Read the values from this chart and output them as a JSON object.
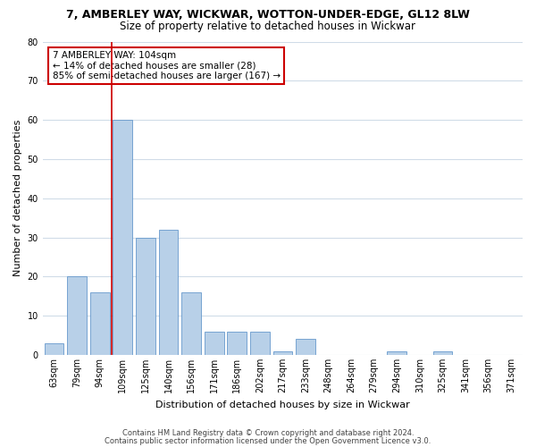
{
  "title1": "7, AMBERLEY WAY, WICKWAR, WOTTON-UNDER-EDGE, GL12 8LW",
  "title2": "Size of property relative to detached houses in Wickwar",
  "xlabel": "Distribution of detached houses by size in Wickwar",
  "ylabel": "Number of detached properties",
  "bar_labels": [
    "63sqm",
    "79sqm",
    "94sqm",
    "109sqm",
    "125sqm",
    "140sqm",
    "156sqm",
    "171sqm",
    "186sqm",
    "202sqm",
    "217sqm",
    "233sqm",
    "248sqm",
    "264sqm",
    "279sqm",
    "294sqm",
    "310sqm",
    "325sqm",
    "341sqm",
    "356sqm",
    "371sqm"
  ],
  "bar_values": [
    3,
    20,
    16,
    60,
    30,
    32,
    16,
    6,
    6,
    6,
    1,
    4,
    0,
    0,
    0,
    1,
    0,
    1,
    0,
    0,
    0
  ],
  "bar_color": "#b8d0e8",
  "bar_edge_color": "#6699cc",
  "grid_color": "#d0dce8",
  "annotation_line1": "7 AMBERLEY WAY: 104sqm",
  "annotation_line2": "← 14% of detached houses are smaller (28)",
  "annotation_line3": "85% of semi-detached houses are larger (167) →",
  "annotation_box_color": "#ffffff",
  "annotation_box_edge_color": "#cc0000",
  "vline_x": 2.5,
  "vline_color": "#cc0000",
  "ylim": [
    0,
    80
  ],
  "yticks": [
    0,
    10,
    20,
    30,
    40,
    50,
    60,
    70,
    80
  ],
  "footer1": "Contains HM Land Registry data © Crown copyright and database right 2024.",
  "footer2": "Contains public sector information licensed under the Open Government Licence v3.0.",
  "background_color": "#ffffff",
  "title1_fontsize": 9,
  "title2_fontsize": 8.5,
  "xlabel_fontsize": 8,
  "ylabel_fontsize": 8,
  "tick_fontsize": 7,
  "footer_fontsize": 6,
  "annot_fontsize": 7.5
}
